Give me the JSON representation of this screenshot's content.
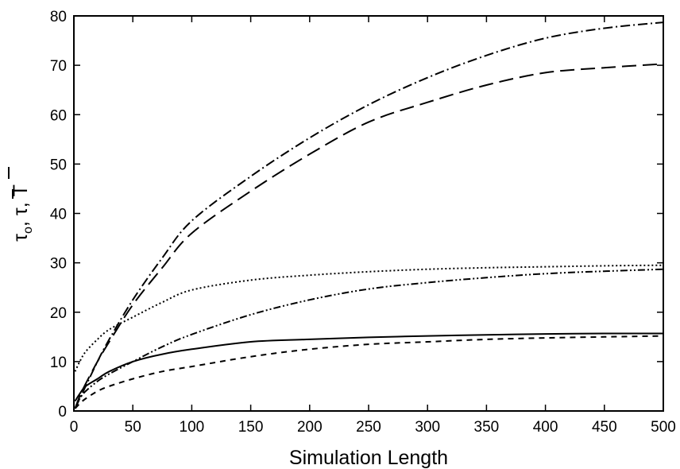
{
  "chart_data": {
    "type": "line",
    "title": "",
    "xlabel": "Simulation Length",
    "ylabel": "τ₀, τ̄, T̄",
    "xlim": [
      0,
      500
    ],
    "ylim": [
      0,
      80
    ],
    "x_ticks": [
      0,
      50,
      100,
      150,
      200,
      250,
      300,
      350,
      400,
      450,
      500
    ],
    "y_ticks": [
      0,
      10,
      20,
      30,
      40,
      50,
      60,
      70,
      80
    ],
    "grid": false,
    "legend": "none",
    "x": [
      1,
      5,
      10,
      20,
      30,
      50,
      75,
      100,
      150,
      200,
      250,
      300,
      350,
      400,
      450,
      500
    ],
    "series": [
      {
        "style": "dash-dot",
        "color": "#000000",
        "values": [
          0.5,
          2.5,
          5,
          10,
          14.5,
          22.5,
          31,
          38.5,
          47.5,
          55.3,
          62,
          67.5,
          72,
          75.5,
          77.5,
          78.7
        ]
      },
      {
        "style": "long-dash",
        "color": "#000000",
        "values": [
          0.5,
          3,
          5.5,
          10,
          14,
          21.5,
          29,
          36,
          44.5,
          52,
          58.5,
          62.5,
          66,
          68.5,
          69.5,
          70.3
        ]
      },
      {
        "style": "dotted",
        "color": "#000000",
        "values": [
          8,
          10,
          12,
          14.5,
          16.5,
          19,
          22,
          24.5,
          26.5,
          27.5,
          28.2,
          28.7,
          29,
          29.2,
          29.4,
          29.5
        ]
      },
      {
        "style": "dash-dot-dot",
        "color": "#000000",
        "values": [
          0.5,
          2.5,
          4,
          6,
          7.5,
          10,
          13,
          15.5,
          19.5,
          22.5,
          24.7,
          26,
          27,
          27.8,
          28.3,
          28.7
        ]
      },
      {
        "style": "solid",
        "color": "#000000",
        "values": [
          2,
          3.5,
          5,
          6.5,
          8,
          10,
          11.5,
          12.5,
          14,
          14.5,
          14.9,
          15.2,
          15.4,
          15.6,
          15.7,
          15.7
        ]
      },
      {
        "style": "short-dash",
        "color": "#000000",
        "values": [
          0.5,
          1.5,
          2.5,
          4,
          5,
          6.5,
          8,
          9,
          11,
          12.5,
          13.5,
          14,
          14.5,
          14.8,
          15,
          15.2
        ]
      }
    ]
  }
}
